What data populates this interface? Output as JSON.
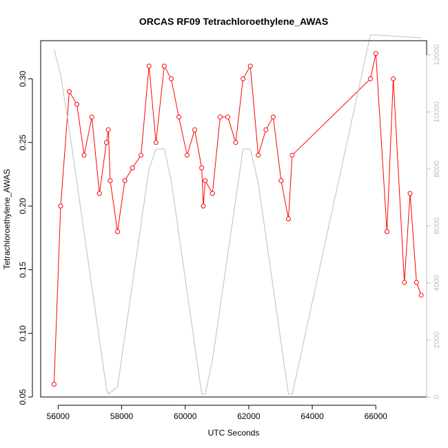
{
  "chart_data": {
    "type": "line",
    "title": "ORCAS RF09 Tetrachloroethylene_AWAS",
    "xlabel": "UTC Seconds",
    "ylabel": "Tetrachloroethylene_AWAS",
    "xlim": [
      55450,
      67600
    ],
    "ylim": [
      0.05,
      0.33
    ],
    "y2lim": [
      0,
      12500
    ],
    "x_ticks": [
      56000,
      58000,
      60000,
      62000,
      64000,
      66000
    ],
    "y_ticks": [
      0.05,
      0.1,
      0.15,
      0.2,
      0.25,
      0.3
    ],
    "y2_ticks": [
      0,
      2000,
      4000,
      6000,
      8000,
      10000,
      12000
    ],
    "grid": false,
    "legend": "none",
    "series": [
      {
        "color": "#ff0000",
        "marker": "open-circle",
        "axis": "left",
        "x": [
          55870,
          56080,
          56350,
          56590,
          56820,
          57060,
          57300,
          57520,
          57580,
          57640,
          57870,
          58100,
          58340,
          58610,
          58860,
          59080,
          59340,
          59560,
          59800,
          60060,
          60300,
          60520,
          60570,
          60630,
          60860,
          61100,
          61340,
          61590,
          61820,
          62050,
          62300,
          62540,
          62770,
          63020,
          63250,
          63370,
          65830,
          66000,
          66350,
          66550,
          66900,
          67080,
          67280,
          67430
        ],
        "y": [
          0.06,
          0.2,
          0.29,
          0.28,
          0.24,
          0.27,
          0.21,
          0.25,
          0.26,
          0.22,
          0.18,
          0.22,
          0.23,
          0.24,
          0.31,
          0.25,
          0.31,
          0.3,
          0.27,
          0.24,
          0.26,
          0.23,
          0.2,
          0.22,
          0.21,
          0.27,
          0.27,
          0.25,
          0.3,
          0.31,
          0.24,
          0.26,
          0.27,
          0.22,
          0.19,
          0.24,
          0.3,
          0.32,
          0.18,
          0.3,
          0.14,
          0.21,
          0.14,
          0.13
        ]
      },
      {
        "color": "#bebebe",
        "marker": "none",
        "axis": "right",
        "x": [
          55870,
          56080,
          56350,
          57520,
          57580,
          57640,
          57870,
          58860,
          59080,
          59340,
          59560,
          60520,
          60570,
          60630,
          60860,
          61820,
          62050,
          62300,
          63250,
          63370,
          65830,
          66000,
          67430
        ],
        "y": [
          12200,
          11300,
          9400,
          300,
          100,
          150,
          350,
          8000,
          8700,
          8700,
          7600,
          100,
          100,
          100,
          1300,
          8700,
          8700,
          7500,
          100,
          100,
          12700,
          12700,
          12600
        ]
      }
    ]
  }
}
